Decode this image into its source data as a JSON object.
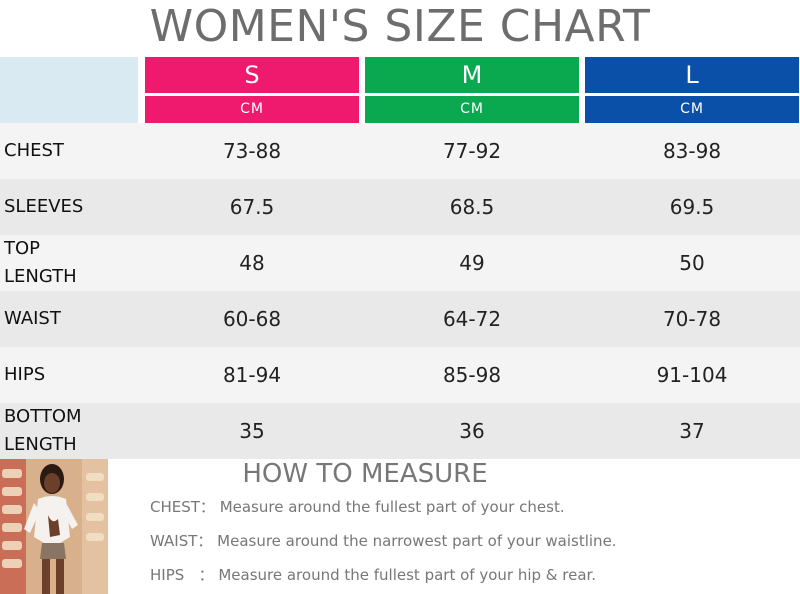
{
  "title": "WOMEN'S SIZE CHART",
  "sizes": [
    {
      "label": "S",
      "unit": "CM",
      "color": "#ef1a6e"
    },
    {
      "label": "M",
      "unit": "CM",
      "color": "#0aa84f"
    },
    {
      "label": "L",
      "unit": "CM",
      "color": "#0a4fa8"
    }
  ],
  "rows": [
    {
      "name": "CHEST",
      "values": [
        "73-88",
        "77-92",
        "83-98"
      ]
    },
    {
      "name": "SLEEVES",
      "values": [
        "67.5",
        "68.5",
        "69.5"
      ]
    },
    {
      "name": "TOP\nLENGTH",
      "values": [
        "48",
        "49",
        "50"
      ]
    },
    {
      "name": "WAIST",
      "values": [
        "60-68",
        "64-72",
        "70-78"
      ]
    },
    {
      "name": "HIPS",
      "values": [
        "81-94",
        "85-98",
        "91-104"
      ]
    },
    {
      "name": "BOTTOM\nLENGTH",
      "values": [
        "35",
        "36",
        "37"
      ]
    }
  ],
  "how_to_measure": {
    "title": "HOW TO MEASURE",
    "lines": [
      {
        "label": "CHEST：",
        "text": " Measure around the fullest part of your chest."
      },
      {
        "label": "WAIST：",
        "text": " Measure around the narrowest part of your waistline."
      },
      {
        "label": "HIPS   ：",
        "text": " Measure around the fullest part of your hip & rear."
      }
    ]
  },
  "colors": {
    "title": "#6d6d6d",
    "header_blank": "#daeaf3",
    "row_light": "#f4f4f4",
    "row_dark": "#e9e9e9"
  }
}
